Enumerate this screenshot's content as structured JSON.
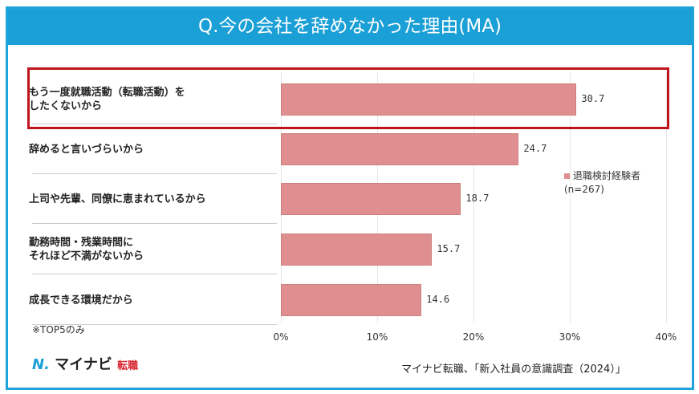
{
  "colors": {
    "title_bg": "#1a9fd6",
    "bar": "#df8f8f",
    "highlight": "#c0141d"
  },
  "chart_data": {
    "type": "bar",
    "orientation": "horizontal",
    "title": "Q.今の会社を辞めなかった理由(MA)",
    "categories": [
      "もう一度就職活動（転職活動）を\nしたくないから",
      "辞めると言いづらいから",
      "上司や先輩、同僚に恵まれているから",
      "勤務時間・残業時間に\nそれほど不満がないから",
      "成長できる環境だから"
    ],
    "series": [
      {
        "name": "退職検討経験者\n(n=267)",
        "values": [
          30.7,
          24.7,
          18.7,
          15.7,
          14.6
        ]
      }
    ],
    "value_labels": [
      "30.7",
      "24.7",
      "18.7",
      "15.7",
      "14.6"
    ],
    "xlim": [
      0,
      40
    ],
    "xticks": [
      "0%",
      "10%",
      "20%",
      "30%",
      "40%"
    ],
    "grid": true,
    "legend_placement": "right",
    "highlighted_category_index": 0,
    "note": "※TOP5のみ"
  },
  "footer": {
    "logo": "マイナビ転職",
    "source": "マイナビ転職、「新入社員の意識調査（2024）」"
  }
}
